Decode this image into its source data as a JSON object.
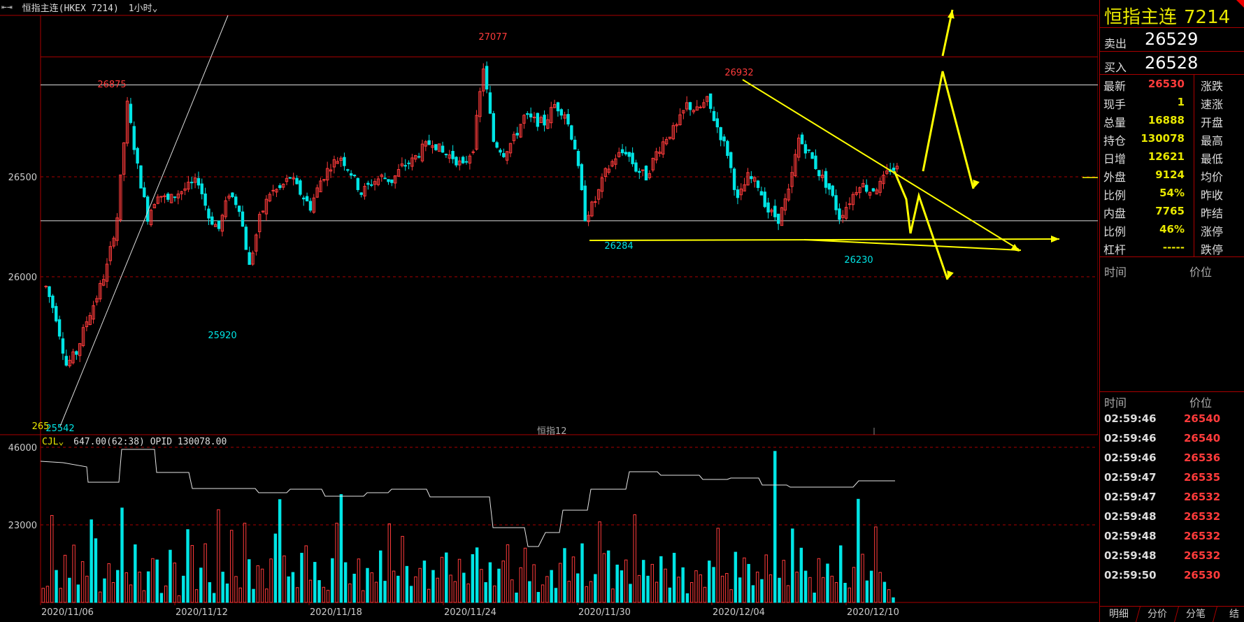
{
  "header": {
    "name": "恒指主连",
    "code": "(HKEX 7214)",
    "timeframe": "1小时",
    "timeframe_icon": "chevron-down-icon",
    "collapse_icon": "collapse-arrows-icon"
  },
  "volume_header": {
    "indicator": "CJL",
    "text": "647.00(62:38)  OPID 130078.00"
  },
  "contract_hint": "恒指12",
  "panel": {
    "title": "恒指主连",
    "code": "7214",
    "sell_label": "卖出",
    "sell_value": "26529",
    "buy_label": "买入",
    "buy_value": "26528",
    "stats": [
      {
        "label": "最新",
        "value": "26530",
        "red": true,
        "label2": "涨跌"
      },
      {
        "label": "现手",
        "value": "1",
        "red": false,
        "label2": "速涨"
      },
      {
        "label": "总量",
        "value": "16888",
        "red": false,
        "label2": "开盘"
      },
      {
        "label": "持仓",
        "value": "130078",
        "red": false,
        "label2": "最高"
      },
      {
        "label": "日增",
        "value": "12621",
        "red": false,
        "label2": "最低"
      },
      {
        "label": "外盘",
        "value": "9124",
        "red": false,
        "label2": "均价"
      },
      {
        "label": "比例",
        "value": "54%",
        "red": false,
        "label2": "昨收"
      },
      {
        "label": "内盘",
        "value": "7765",
        "red": false,
        "label2": "昨结"
      },
      {
        "label": "比例",
        "value": "46%",
        "red": false,
        "label2": "涨停"
      },
      {
        "label": "杠杆",
        "value": "-----",
        "red": false,
        "label2": "跌停"
      }
    ],
    "table_header": {
      "time": "时间",
      "price": "价位"
    },
    "trades": [
      {
        "time": "02:59:46",
        "price": "26540"
      },
      {
        "time": "02:59:46",
        "price": "26540"
      },
      {
        "time": "02:59:46",
        "price": "26536"
      },
      {
        "time": "02:59:47",
        "price": "26535"
      },
      {
        "time": "02:59:47",
        "price": "26532"
      },
      {
        "time": "02:59:48",
        "price": "26532"
      },
      {
        "time": "02:59:48",
        "price": "26532"
      },
      {
        "time": "02:59:48",
        "price": "26532"
      },
      {
        "time": "02:59:50",
        "price": "26530"
      }
    ],
    "tabs": [
      "明细",
      "分价",
      "分笔",
      "结"
    ],
    "colors": {
      "up": "#ff3b3b",
      "down": "#00e5e5",
      "accent": "#e8e800",
      "border": "#aa0000"
    }
  },
  "chart_data": [
    {
      "type": "candlestick",
      "y_ticks": [
        26000,
        26500
      ],
      "y_range": [
        25500,
        27100
      ],
      "x_tick_labels": [
        "2020/11/06",
        "2020/11/12",
        "2020/11/18",
        "2020/11/24",
        "2020/11/30",
        "2020/12/04",
        "2020/12/10"
      ],
      "close_path": [
        25950,
        25800,
        25560,
        25620,
        25780,
        25900,
        26050,
        26300,
        26860,
        26550,
        26300,
        26420,
        26380,
        26420,
        26450,
        26480,
        26300,
        26240,
        26420,
        26350,
        26050,
        26290,
        26420,
        26440,
        26500,
        26420,
        26350,
        26480,
        26560,
        26600,
        26520,
        26420,
        26470,
        26500,
        26480,
        26550,
        26580,
        26640,
        26680,
        26620,
        26600,
        26550,
        26650,
        27050,
        26680,
        26620,
        26690,
        26800,
        26780,
        26770,
        26860,
        26820,
        26650,
        26300,
        26380,
        26520,
        26600,
        26630,
        26540,
        26500,
        26620,
        26700,
        26750,
        26860,
        26830,
        26880,
        26750,
        26620,
        26380,
        26500,
        26460,
        26330,
        26290,
        26420,
        26690,
        26620,
        26520,
        26440,
        26300,
        26380,
        26470,
        26430,
        26460,
        26540
      ],
      "annotations": [
        {
          "label": "26875",
          "value": 26875,
          "color": "#ff3b3b"
        },
        {
          "label": "27077",
          "value": 27077,
          "color": "#ff3b3b"
        },
        {
          "label": "26932",
          "value": 26932,
          "color": "#ff3b3b"
        },
        {
          "label": "25920",
          "value": 25920,
          "color": "#00e5e5"
        },
        {
          "label": "26284",
          "value": 26284,
          "color": "#00e5e5"
        },
        {
          "label": "26230",
          "value": 26230,
          "color": "#00e5e5"
        },
        {
          "label": "25542",
          "value": 25542,
          "color": "#00e5e5"
        },
        {
          "label": "265",
          "value": 25542,
          "color": "#e8e800"
        }
      ],
      "horizontal_lines": [
        26280,
        26960,
        27100
      ],
      "gridlines": [
        26000,
        26500
      ],
      "drawn_trendline": {
        "from": 26932,
        "to": 26280
      },
      "colors": {
        "up": "#ff3b3b",
        "down": "#00e5e5",
        "drawing": "#ffff00",
        "level": "#dddddd"
      }
    },
    {
      "type": "bar",
      "name": "CJL",
      "y_ticks": [
        23000,
        46000
      ],
      "y_range": [
        0,
        46000
      ],
      "values": [
        4200,
        4800,
        25800,
        9500,
        4200,
        14000,
        7200,
        17000,
        5200,
        12100,
        7800,
        24500,
        18900,
        3100,
        7000,
        11500,
        5900,
        9500,
        28000,
        8800,
        5200,
        17100,
        9000,
        3500,
        9100,
        13000,
        12600,
        2700,
        4900,
        15500,
        11700,
        2000,
        7800,
        21600,
        16900,
        3800,
        10200,
        17400,
        5900,
        2700,
        27500,
        9000,
        5500,
        21400,
        7700,
        4300,
        23500,
        12700,
        3900,
        10900,
        9900,
        4000,
        12900,
        20300,
        30500,
        13800,
        7600,
        8900,
        4400,
        14600,
        16800,
        6600,
        11900,
        6500,
        4500,
        3600,
        13000,
        23500,
        32000,
        11800,
        5500,
        8400,
        12900,
        3500,
        10100,
        8800,
        6000,
        15300,
        6300,
        23300,
        9300,
        7800,
        19600,
        10700,
        4800,
        7600,
        10100,
        12300,
        3900,
        9500,
        7200,
        13400,
        14700,
        8100,
        6200,
        12800,
        8700,
        5500,
        14200,
        16200,
        9800,
        5900,
        11800,
        4900,
        9900,
        12300,
        17100,
        6700,
        2800,
        10300,
        16100,
        6200,
        11200,
        3000,
        5200,
        7700,
        9500,
        4200,
        11600,
        16000,
        6300,
        13500,
        8500,
        17400,
        4700,
        6200,
        8300,
        23900,
        14500,
        15300,
        4000,
        11100,
        9400,
        12600,
        5400,
        26000,
        8000,
        12500,
        7800,
        11300,
        6000,
        13600,
        9900,
        4300,
        14600,
        7500,
        10300,
        2600,
        5900,
        9400,
        8200,
        4500,
        12300,
        10400,
        22000,
        7800,
        8600,
        3800,
        14900,
        7300,
        13200,
        11300,
        5000,
        9000,
        6800,
        14100,
        8200,
        44800,
        7200,
        12500,
        5000,
        21800,
        9000,
        16100,
        9300,
        7400,
        2800,
        13000,
        7400,
        11400,
        7800,
        5900,
        16800,
        5700,
        4300,
        10400,
        30600,
        14300,
        6400,
        9300,
        22400,
        8900,
        6000,
        3800,
        1400
      ]
    }
  ]
}
